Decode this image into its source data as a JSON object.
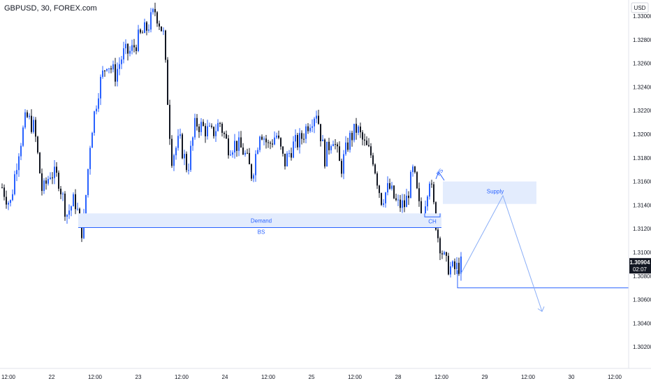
{
  "header": {
    "symbol_title": "GBPUSD, 30, FOREX.com"
  },
  "price_axis": {
    "currency": "USD",
    "ticks": [
      "1.33000",
      "1.32800",
      "1.32600",
      "1.32400",
      "1.32200",
      "1.32000",
      "1.31800",
      "1.31600",
      "1.31400",
      "1.31200",
      "1.31000",
      "1.30800",
      "1.30600",
      "1.30400",
      "1.30200"
    ]
  },
  "time_axis": {
    "ticks": [
      "12:00",
      "22",
      "12:00",
      "23",
      "12:00",
      "24",
      "12:00",
      "25",
      "12:00",
      "28",
      "12:00",
      "29",
      "12:00",
      "30",
      "12:00"
    ]
  },
  "current_price": {
    "value": "1.30904",
    "countdown": "02:07",
    "color": "#131722"
  },
  "annotations": {
    "demand_label": "Demand",
    "bs_label": "BS",
    "supply_label": "Supply",
    "ch_label": "CH",
    "fs_label": "FS",
    "zone_color": "#2962ff",
    "zone_fill": "#e3ecfd"
  },
  "chart_data": {
    "type": "candlestick",
    "title": "GBPUSD, 30, FOREX.com",
    "ylim": [
      1.3,
      1.331
    ],
    "up_color": "#2962ff",
    "down_color": "#131722",
    "demand_zone": [
      1.3121,
      1.3133
    ],
    "supply_zone": [
      1.3141,
      1.316
    ],
    "bs_level": 1.3121,
    "target_level": 1.307,
    "projection": [
      1.3082,
      1.3148,
      1.305
    ],
    "price_path": [
      1.3155,
      1.314,
      1.3185,
      1.3215,
      1.3205,
      1.315,
      1.3168,
      1.3162,
      1.3132,
      1.3145,
      1.3115,
      1.32,
      1.324,
      1.3262,
      1.325,
      1.3268,
      1.327,
      1.3282,
      1.329,
      1.3305,
      1.3285,
      1.318,
      1.3195,
      1.317,
      1.321,
      1.3205,
      1.32,
      1.321,
      1.319,
      1.3192,
      1.3185,
      1.3165,
      1.3205,
      1.319,
      1.32,
      1.3175,
      1.319,
      1.3195,
      1.321,
      1.322,
      1.318,
      1.32,
      1.317,
      1.3195,
      1.3205,
      1.319,
      1.318,
      1.3145,
      1.3155,
      1.314,
      1.314,
      1.317,
      1.3125,
      1.3165,
      1.3115,
      1.309,
      1.3085,
      1.309
    ]
  }
}
